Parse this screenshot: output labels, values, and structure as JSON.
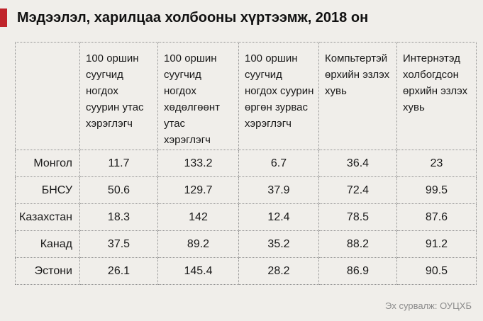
{
  "title": "Мэдээлэл, харилцаа холбооны хүртээмж, 2018 он",
  "accent_color": "#c0242b",
  "table": {
    "headers": [
      "",
      "100 оршин суугчид ногдох суурин утас хэрэглэгч",
      "100 оршин суугчид ногдох хөдөлгөөнт утас хэрэглэгч",
      "100 оршин суугчид ногдох суурин өргөн зурвас хэрэглэгч",
      "Компьтертэй өрхийн эзлэх хувь",
      "Интернэтэд холбогдсон өрхийн эзлэх хувь"
    ],
    "rows": [
      [
        "Монгол",
        "11.7",
        "133.2",
        "6.7",
        "36.4",
        "23"
      ],
      [
        "БНСУ",
        "50.6",
        "129.7",
        "37.9",
        "72.4",
        "99.5"
      ],
      [
        "Казахстан",
        "18.3",
        "142",
        "12.4",
        "78.5",
        "87.6"
      ],
      [
        "Канад",
        "37.5",
        "89.2",
        "35.2",
        "88.2",
        "91.2"
      ],
      [
        "Эстони",
        "26.1",
        "145.4",
        "28.2",
        "86.9",
        "90.5"
      ]
    ]
  },
  "source": "Эх сурвалж: ОУЦХБ"
}
